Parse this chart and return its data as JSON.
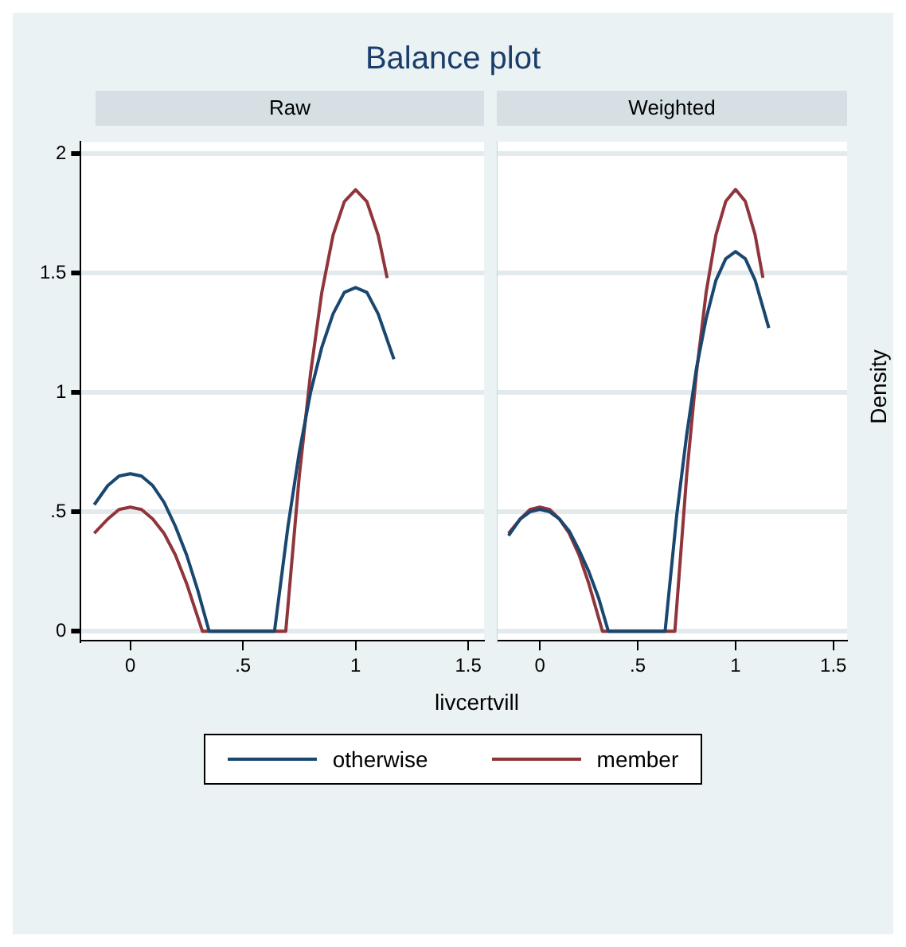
{
  "chart_data": [
    {
      "type": "line",
      "title": "Balance plot",
      "subtitle": "Raw",
      "xlabel": "livcertvill",
      "legend": "bottom",
      "grid": "y",
      "marker": "none",
      "xlim": [
        -0.22,
        1.57
      ],
      "ylim": [
        -0.04,
        2.05
      ],
      "xticks": [
        0,
        {
          "value": 0.5,
          "label": ".5"
        },
        1,
        1.5
      ],
      "yticks": [
        0,
        {
          "value": 0.5,
          "label": ".5"
        },
        1,
        1.5,
        2
      ],
      "series": [
        {
          "name": "otherwise",
          "color": "#1a476f",
          "x": [
            -0.16,
            -0.1,
            -0.05,
            0,
            0.05,
            0.1,
            0.15,
            0.2,
            0.25,
            0.3,
            0.35,
            0.64,
            0.7,
            0.75,
            0.8,
            0.85,
            0.9,
            0.95,
            1,
            1.05,
            1.1,
            1.17
          ],
          "values": [
            0.53,
            0.61,
            0.65,
            0.66,
            0.65,
            0.61,
            0.54,
            0.44,
            0.32,
            0.17,
            0,
            0,
            0.44,
            0.75,
            1.0,
            1.19,
            1.33,
            1.42,
            1.44,
            1.42,
            1.33,
            1.14
          ]
        },
        {
          "name": "member",
          "color": "#90353b",
          "x": [
            -0.16,
            -0.1,
            -0.05,
            0,
            0.05,
            0.1,
            0.15,
            0.2,
            0.25,
            0.32,
            0.69,
            0.75,
            0.8,
            0.85,
            0.9,
            0.95,
            1,
            1.05,
            1.1,
            1.14
          ],
          "values": [
            0.41,
            0.47,
            0.51,
            0.52,
            0.51,
            0.47,
            0.41,
            0.32,
            0.2,
            0,
            0,
            0.65,
            1.08,
            1.42,
            1.66,
            1.8,
            1.85,
            1.8,
            1.66,
            1.48
          ]
        }
      ]
    },
    {
      "type": "line",
      "subtitle": "Weighted",
      "ylabel": "Density",
      "grid": "y",
      "marker": "none",
      "tick_labels": "x",
      "xlim": [
        -0.22,
        1.57
      ],
      "ylim": [
        -0.04,
        2.05
      ],
      "xticks": [
        0,
        {
          "value": 0.5,
          "label": ".5"
        },
        1,
        1.5
      ],
      "yticks": [
        {
          "value": 0,
          "label": null
        },
        {
          "value": 0.5,
          "label": null
        },
        {
          "value": 1,
          "label": null
        },
        {
          "value": 1.5,
          "label": null
        },
        {
          "value": 2,
          "label": null
        }
      ],
      "series": [
        {
          "color": "#1a476f",
          "x": [
            -0.16,
            -0.1,
            -0.05,
            0,
            0.05,
            0.1,
            0.15,
            0.2,
            0.25,
            0.3,
            0.35,
            0.64,
            0.7,
            0.75,
            0.8,
            0.85,
            0.9,
            0.95,
            1,
            1.05,
            1.1,
            1.17
          ],
          "values": [
            0.4,
            0.47,
            0.5,
            0.51,
            0.5,
            0.47,
            0.42,
            0.34,
            0.25,
            0.14,
            0,
            0,
            0.49,
            0.82,
            1.1,
            1.31,
            1.47,
            1.56,
            1.59,
            1.56,
            1.47,
            1.27
          ]
        },
        {
          "color": "#90353b",
          "x": [
            -0.16,
            -0.1,
            -0.05,
            0,
            0.05,
            0.1,
            0.15,
            0.2,
            0.25,
            0.32,
            0.69,
            0.75,
            0.8,
            0.85,
            0.9,
            0.95,
            1,
            1.05,
            1.1,
            1.14
          ],
          "values": [
            0.41,
            0.47,
            0.51,
            0.52,
            0.51,
            0.47,
            0.41,
            0.32,
            0.2,
            0,
            0,
            0.65,
            1.08,
            1.42,
            1.66,
            1.8,
            1.85,
            1.8,
            1.66,
            1.48
          ]
        }
      ]
    }
  ]
}
